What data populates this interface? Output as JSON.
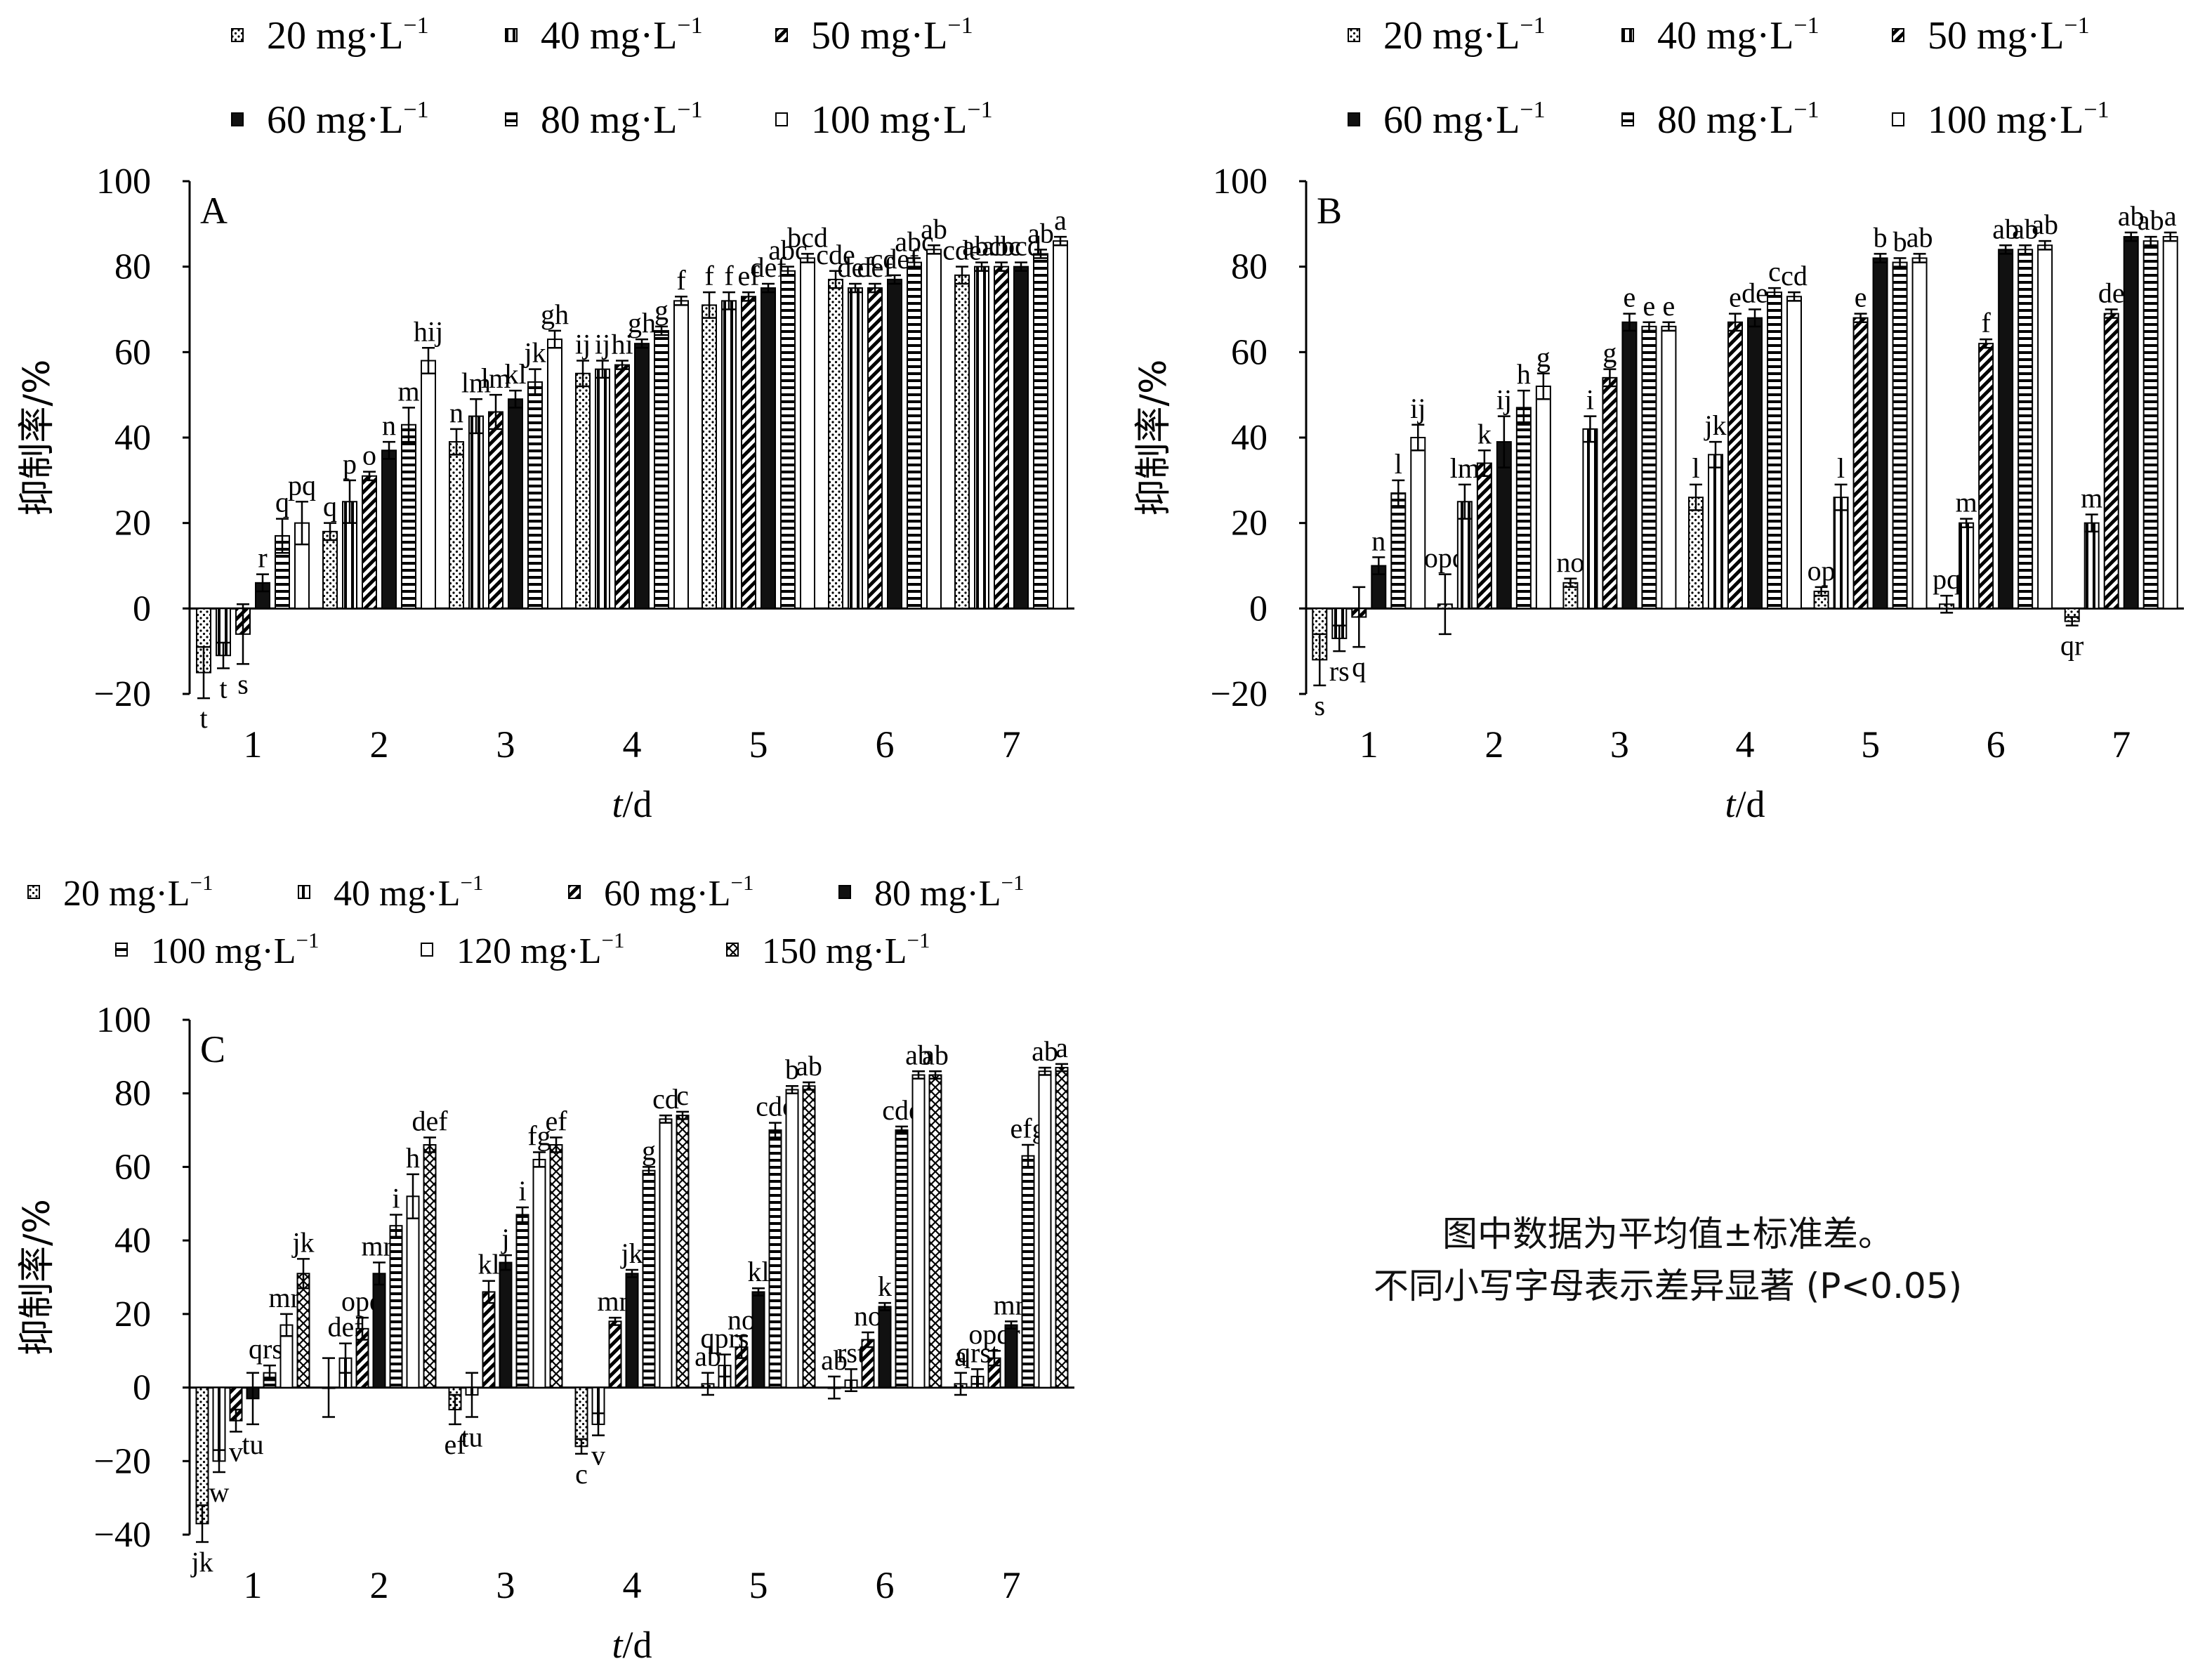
{
  "units": {
    "unit_text": "mg·L",
    "unit_exp": "−1"
  },
  "note": {
    "line1": "图中数据为平均值±标准差。",
    "line2": "不同小写字母表示差异显著 (P<0.05)"
  },
  "chart_data": [
    {
      "panel": "A",
      "type": "bar",
      "ylabel": "抑制率/%",
      "xlabel": "t/d",
      "ylim": [
        -20,
        100
      ],
      "yticks": [
        "−20",
        "0",
        "20",
        "40",
        "60",
        "80",
        "100"
      ],
      "categories": [
        "1",
        "2",
        "3",
        "4",
        "5",
        "6",
        "7"
      ],
      "series": [
        {
          "name": "20",
          "pattern": "dots",
          "values": [
            -15,
            18,
            39,
            55,
            71,
            77,
            78
          ],
          "errors": [
            6,
            2,
            3,
            3,
            3,
            2,
            2
          ],
          "labels": [
            "t",
            "q",
            "n",
            "ij",
            "f",
            "cde",
            "cde"
          ]
        },
        {
          "name": "40",
          "pattern": "vstripe",
          "values": [
            -11,
            25,
            45,
            56,
            72,
            75,
            80
          ],
          "errors": [
            3,
            5,
            4,
            2,
            2,
            1,
            1
          ],
          "labels": [
            "t",
            "p",
            "lm",
            "ij",
            "f",
            "def",
            "abc"
          ]
        },
        {
          "name": "50",
          "pattern": "diag",
          "values": [
            -6,
            31,
            46,
            57,
            73,
            75,
            80
          ],
          "errors": [
            7,
            1,
            4,
            1,
            1,
            1,
            1
          ],
          "labels": [
            "s",
            "o",
            "lm",
            "hi",
            "ef",
            "def",
            "abc"
          ]
        },
        {
          "name": "60",
          "pattern": "solid",
          "values": [
            6,
            37,
            49,
            62,
            75,
            77,
            80
          ],
          "errors": [
            2,
            2,
            2,
            1,
            1,
            1,
            1
          ],
          "labels": [
            "r",
            "n",
            "kl",
            "gh",
            "def",
            "cdef",
            "bcd"
          ]
        },
        {
          "name": "80",
          "pattern": "hstripe",
          "values": [
            17,
            43,
            53,
            65,
            79,
            81,
            83
          ],
          "errors": [
            4,
            4,
            3,
            1,
            1,
            1,
            1
          ],
          "labels": [
            "q",
            "m",
            "jk",
            "g",
            "abc",
            "abc",
            "ab"
          ]
        },
        {
          "name": "100",
          "pattern": "blank",
          "values": [
            20,
            58,
            63,
            72,
            82,
            84,
            86
          ],
          "errors": [
            5,
            3,
            2,
            1,
            1,
            1,
            1
          ],
          "labels": [
            "pq",
            "hij",
            "gh",
            "f",
            "bcd",
            "ab",
            "a"
          ]
        }
      ]
    },
    {
      "panel": "B",
      "type": "bar",
      "ylabel": "抑制率/%",
      "xlabel": "t/d",
      "ylim": [
        -20,
        100
      ],
      "yticks": [
        "−20",
        "0",
        "20",
        "40",
        "60",
        "80",
        "100"
      ],
      "categories": [
        "1",
        "2",
        "3",
        "4",
        "5",
        "6",
        "7"
      ],
      "series": [
        {
          "name": "20",
          "pattern": "dots",
          "values": [
            -12,
            1,
            6,
            26,
            4,
            1,
            -3
          ],
          "errors": [
            6,
            7,
            1,
            3,
            1,
            2,
            1
          ],
          "labels": [
            "s",
            "opq",
            "no",
            "l",
            "op",
            "pq",
            "qr"
          ]
        },
        {
          "name": "40",
          "pattern": "vstripe",
          "values": [
            -7,
            25,
            42,
            36,
            26,
            20,
            20
          ],
          "errors": [
            3,
            4,
            3,
            3,
            3,
            1,
            2
          ],
          "labels": [
            "rs",
            "lm",
            "i",
            "jk",
            "l",
            "m",
            "m"
          ]
        },
        {
          "name": "50",
          "pattern": "diag",
          "values": [
            -2,
            34,
            54,
            67,
            68,
            62,
            69
          ],
          "errors": [
            7,
            3,
            2,
            2,
            1,
            1,
            1
          ],
          "labels": [
            "q",
            "k",
            "g",
            "e",
            "e",
            "f",
            "de"
          ]
        },
        {
          "name": "60",
          "pattern": "solid",
          "values": [
            10,
            39,
            67,
            68,
            82,
            84,
            87
          ],
          "errors": [
            2,
            6,
            2,
            2,
            1,
            1,
            1
          ],
          "labels": [
            "n",
            "ij",
            "e",
            "de",
            "b",
            "ab",
            "ab"
          ]
        },
        {
          "name": "80",
          "pattern": "hstripe",
          "values": [
            27,
            47,
            66,
            74,
            81,
            84,
            86
          ],
          "errors": [
            3,
            4,
            1,
            1,
            1,
            1,
            1
          ],
          "labels": [
            "l",
            "h",
            "e",
            "c",
            "b",
            "ab",
            "ab"
          ]
        },
        {
          "name": "100",
          "pattern": "blank",
          "values": [
            40,
            52,
            66,
            73,
            82,
            85,
            87
          ],
          "errors": [
            3,
            3,
            1,
            1,
            1,
            1,
            1
          ],
          "labels": [
            "ij",
            "g",
            "e",
            "cd",
            "ab",
            "ab",
            "a"
          ]
        }
      ]
    },
    {
      "panel": "C",
      "type": "bar",
      "ylabel": "抑制率/%",
      "xlabel": "t/d",
      "ylim": [
        -40,
        100
      ],
      "yticks": [
        "−40",
        "−20",
        "0",
        "20",
        "40",
        "60",
        "80",
        "100"
      ],
      "categories": [
        "1",
        "2",
        "3",
        "4",
        "5",
        "6",
        "7"
      ],
      "series": [
        {
          "name": "20",
          "pattern": "dots",
          "values": [
            -37,
            0,
            -6,
            -16,
            1,
            0,
            1
          ],
          "errors": [
            5,
            8,
            4,
            2,
            3,
            3,
            3
          ],
          "labels": [
            "jk",
            "",
            "ef",
            "c",
            "ab",
            "ab",
            "a"
          ]
        },
        {
          "name": "40",
          "pattern": "vstripe",
          "values": [
            -20,
            8,
            -2,
            -10,
            6,
            2,
            3
          ],
          "errors": [
            3,
            4,
            6,
            3,
            3,
            3,
            2
          ],
          "labels": [
            "w",
            "def",
            "tu",
            "v",
            "qprs",
            "rst",
            "qrst"
          ]
        },
        {
          "name": "60",
          "pattern": "diag",
          "values": [
            -9,
            16,
            26,
            18,
            11,
            13,
            8
          ],
          "errors": [
            3,
            3,
            3,
            1,
            3,
            2,
            2
          ],
          "labels": [
            "v",
            "opq",
            "kl",
            "mn",
            "no",
            "no",
            "opqr"
          ]
        },
        {
          "name": "80",
          "pattern": "solid",
          "values": [
            -3,
            31,
            34,
            31,
            26,
            22,
            17
          ],
          "errors": [
            7,
            3,
            2,
            1,
            1,
            1,
            1
          ],
          "labels": [
            "tu",
            "mn",
            "j",
            "jk",
            "kl",
            "k",
            "mn"
          ]
        },
        {
          "name": "100",
          "pattern": "hstripe",
          "values": [
            4,
            44,
            47,
            59,
            70,
            70,
            63
          ],
          "errors": [
            2,
            3,
            2,
            1,
            2,
            1,
            3
          ],
          "labels": [
            "qrst",
            "i",
            "i",
            "g",
            "cde",
            "cde",
            "efg"
          ]
        },
        {
          "name": "120",
          "pattern": "blank",
          "values": [
            17,
            52,
            62,
            73,
            81,
            85,
            86
          ],
          "errors": [
            3,
            6,
            2,
            1,
            1,
            1,
            1
          ],
          "labels": [
            "mn",
            "h",
            "fg",
            "cd",
            "b",
            "ab",
            "ab"
          ]
        },
        {
          "name": "150",
          "pattern": "cross",
          "values": [
            31,
            66,
            66,
            74,
            82,
            85,
            87
          ],
          "errors": [
            4,
            2,
            2,
            1,
            1,
            1,
            1
          ],
          "labels": [
            "jk",
            "def",
            "ef",
            "c",
            "ab",
            "ab",
            "a"
          ]
        }
      ]
    }
  ]
}
